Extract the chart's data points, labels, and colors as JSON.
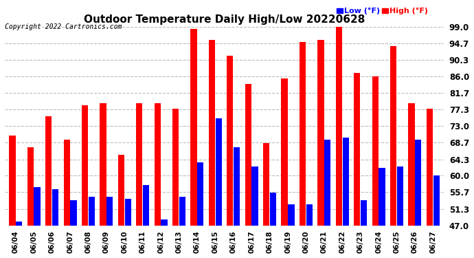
{
  "title": "Outdoor Temperature Daily High/Low 20220628",
  "copyright": "Copyright 2022 Cartronics.com",
  "dates": [
    "06/04",
    "06/05",
    "06/06",
    "06/07",
    "06/08",
    "06/09",
    "06/10",
    "06/11",
    "06/12",
    "06/13",
    "06/14",
    "06/15",
    "06/16",
    "06/17",
    "06/18",
    "06/19",
    "06/20",
    "06/21",
    "06/22",
    "06/23",
    "06/24",
    "06/25",
    "06/26",
    "06/27"
  ],
  "high": [
    70.5,
    67.5,
    75.5,
    69.5,
    78.5,
    79.0,
    65.5,
    79.0,
    79.0,
    77.5,
    98.5,
    95.5,
    91.5,
    84.0,
    68.5,
    85.5,
    95.0,
    95.5,
    99.5,
    87.0,
    86.0,
    94.0,
    79.0,
    77.5
  ],
  "low": [
    48.0,
    57.0,
    56.5,
    53.5,
    54.5,
    54.5,
    54.0,
    57.5,
    48.5,
    54.5,
    63.5,
    75.0,
    67.5,
    62.5,
    55.5,
    52.5,
    52.5,
    69.5,
    70.0,
    53.5,
    62.0,
    62.5,
    69.5,
    60.0
  ],
  "high_color": "#ff0000",
  "low_color": "#0000ff",
  "bg_color": "#ffffff",
  "grid_color": "#bbbbbb",
  "ymin": 47.0,
  "ymax": 99.0,
  "yticks": [
    47.0,
    51.3,
    55.7,
    60.0,
    64.3,
    68.7,
    73.0,
    77.3,
    81.7,
    86.0,
    90.3,
    94.7,
    99.0
  ],
  "legend_low_label": "Low",
  "legend_high_label": "High",
  "legend_unit": "(°F)",
  "legend_low_color": "#0000ff",
  "legend_high_color": "#ff0000",
  "bar_width": 0.35
}
